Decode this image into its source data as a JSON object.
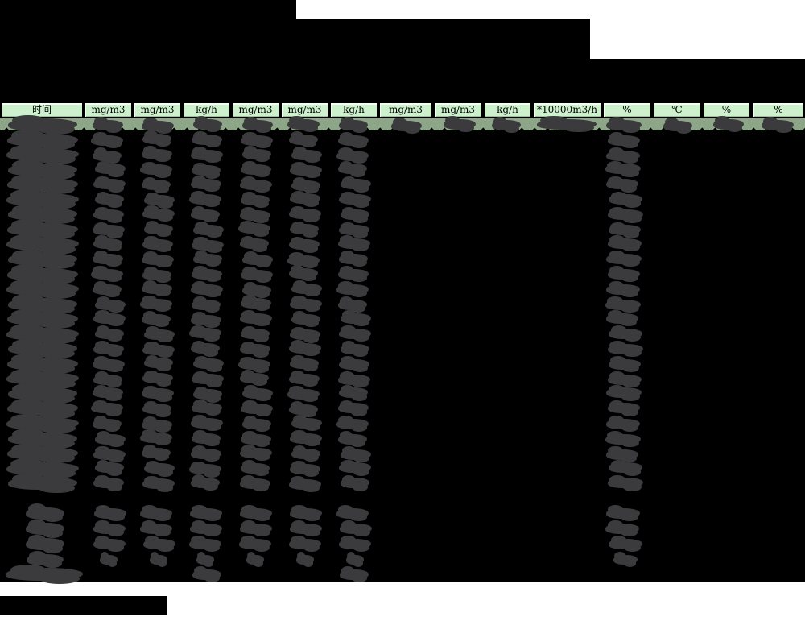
{
  "colors": {
    "page_bg": "#ffffff",
    "table_bg": "#000000",
    "header_bg": "#cdf0cd",
    "first_row_bg": "#8ca687",
    "redaction_blob": "#3b3b3d",
    "redaction_block": "#000000",
    "header_text": "#000000"
  },
  "header": {
    "columns": [
      {
        "label": "时间"
      },
      {
        "label": "mg/m3"
      },
      {
        "label": "mg/m3"
      },
      {
        "label": "kg/h"
      },
      {
        "label": "mg/m3"
      },
      {
        "label": "mg/m3"
      },
      {
        "label": "kg/h"
      },
      {
        "label": "mg/m3"
      },
      {
        "label": "mg/m3"
      },
      {
        "label": "kg/h"
      },
      {
        "label": "*10000m3/h"
      },
      {
        "label": "%"
      },
      {
        "label": "℃"
      },
      {
        "label": "%"
      },
      {
        "label": "%"
      }
    ]
  },
  "body": {
    "main_row_count": 25,
    "summary_row_count": 4,
    "footer_row_count": 1,
    "redacted_value_columns_main_rows": [
      1,
      2,
      3,
      4,
      5,
      6,
      7,
      12
    ],
    "redacted_value_columns_first_row": [
      1,
      2,
      3,
      4,
      5,
      6,
      7,
      8,
      9,
      10,
      11,
      12,
      13,
      14,
      15
    ],
    "redacted_value_columns_footer_row": [
      1,
      4,
      7
    ],
    "redaction_note": "All data values are blacked out with scribble blobs"
  },
  "redacted_blocks": {
    "title_area_block_count": 3,
    "bottom_left_block_count": 1
  }
}
